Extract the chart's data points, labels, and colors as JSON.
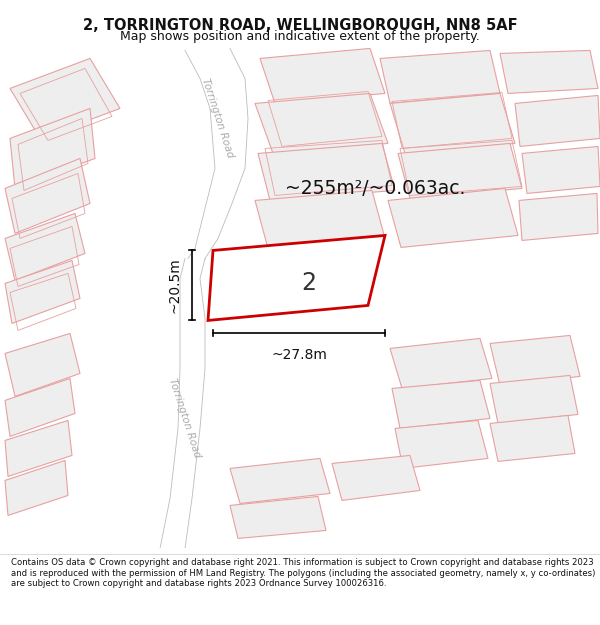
{
  "title_line1": "2, TORRINGTON ROAD, WELLINGBOROUGH, NN8 5AF",
  "title_line2": "Map shows position and indicative extent of the property.",
  "footer_text": "Contains OS data © Crown copyright and database right 2021. This information is subject to Crown copyright and database rights 2023 and is reproduced with the permission of HM Land Registry. The polygons (including the associated geometry, namely x, y co-ordinates) are subject to Crown copyright and database rights 2023 Ordnance Survey 100026316.",
  "bg_color": "#ffffff",
  "map_bg": "#ffffff",
  "building_outline_color": "#e8a0a0",
  "building_fill_color": "#eeeeee",
  "highlight_outline_color": "#cc0000",
  "road_label": "Torrington Road",
  "area_label": "~255m²/~0.063ac.",
  "number_label": "2",
  "dim_width": "~27.8m",
  "dim_height": "~20.5m",
  "road_text_color": "#aaaaaa"
}
